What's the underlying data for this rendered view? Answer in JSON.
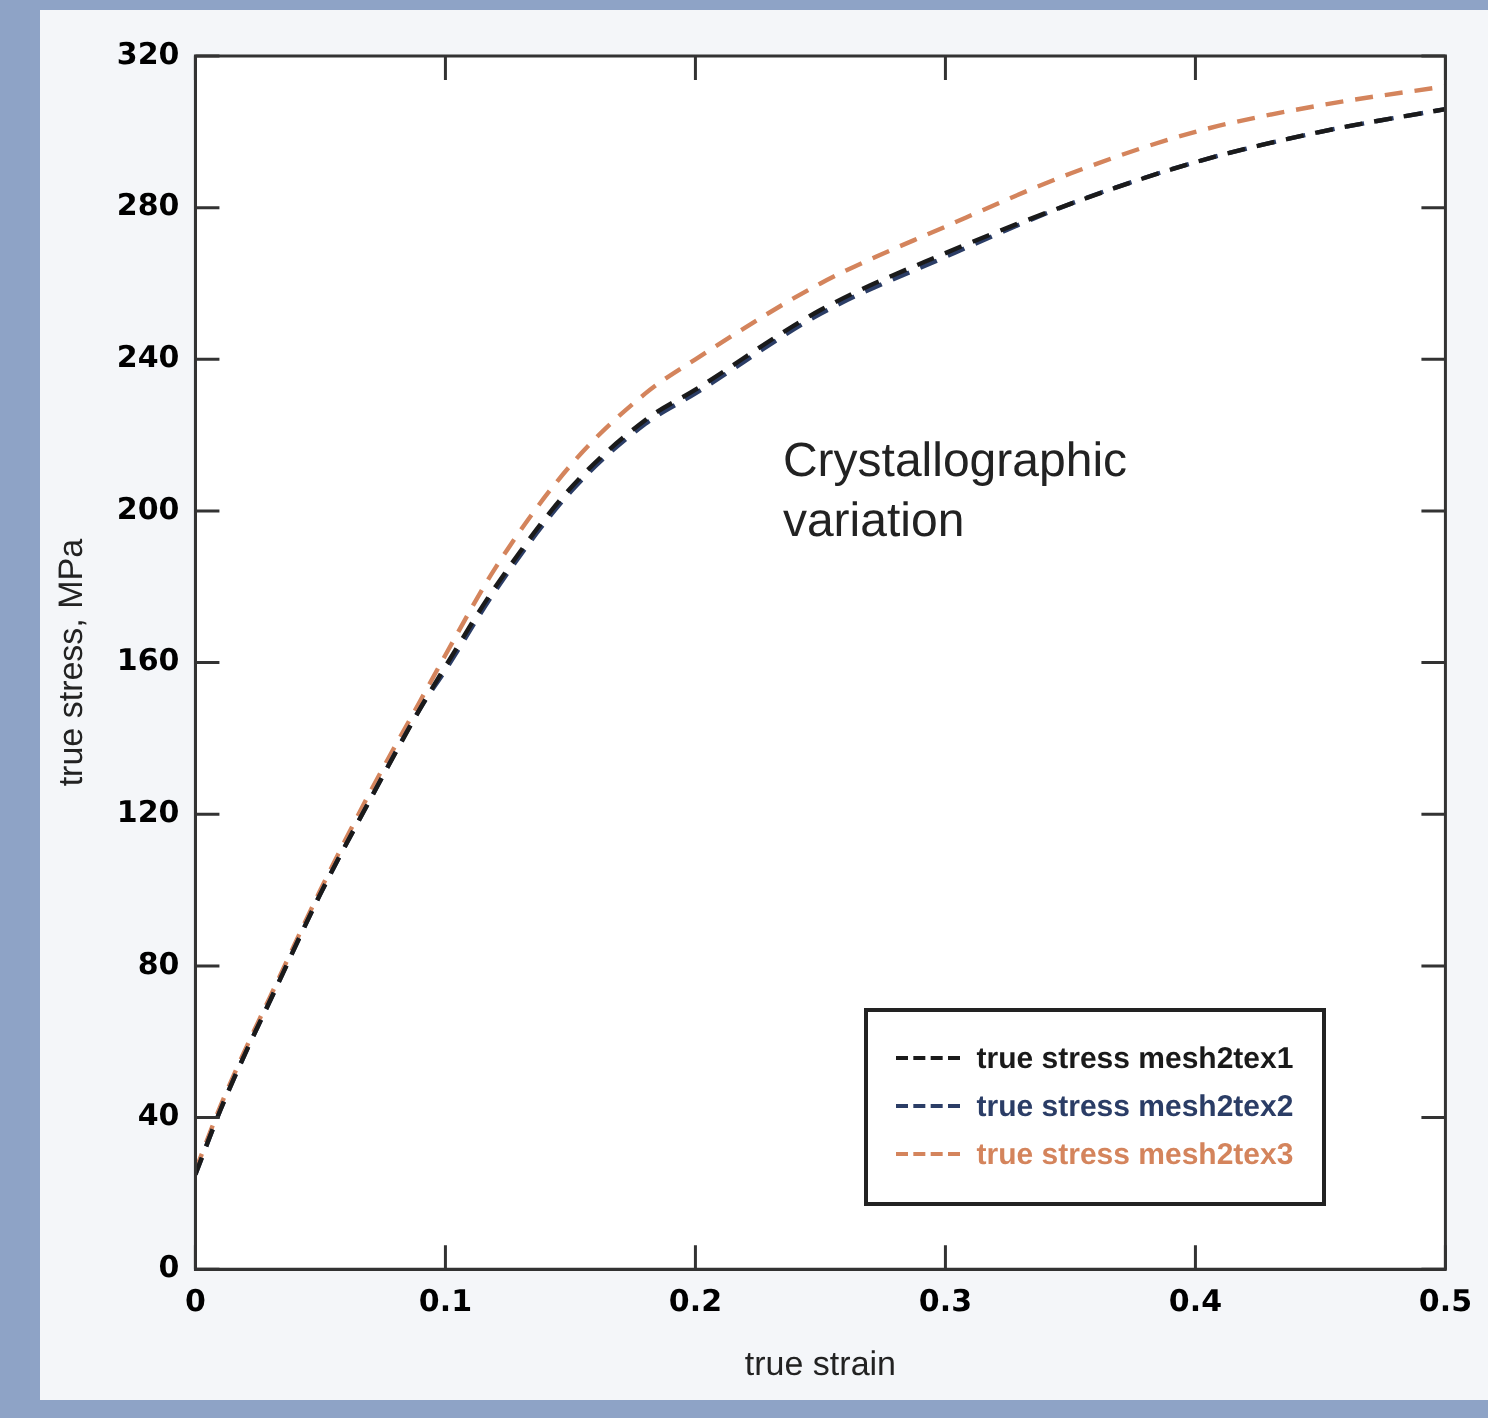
{
  "chart_data": {
    "type": "line",
    "xlabel": "true strain",
    "ylabel": "true stress, MPa",
    "xlim": [
      0,
      0.5
    ],
    "xticks": [
      0,
      0.1,
      0.2,
      0.3,
      0.4,
      0.5
    ],
    "ylim": [
      0,
      320
    ],
    "yticks": [
      0,
      40,
      80,
      120,
      160,
      200,
      240,
      280,
      320
    ],
    "grid": false,
    "legend": "bottom right",
    "marker": "none",
    "line_style": "dashed",
    "annotations": [
      "Crystallographic\nvariation"
    ],
    "series": [
      {
        "name": "true stress mesh2tex1",
        "color": "#1a1a1a",
        "x": [
          0,
          0.01,
          0.02,
          0.03,
          0.05,
          0.07,
          0.09,
          0.1,
          0.12,
          0.15,
          0.18,
          0.2,
          0.25,
          0.3,
          0.35,
          0.4,
          0.45,
          0.5
        ],
        "values": [
          25,
          42,
          57,
          71,
          99,
          124,
          148,
          159,
          180,
          206,
          224,
          232,
          253,
          268,
          281,
          292,
          300,
          306
        ]
      },
      {
        "name": "true stress mesh2tex2",
        "color": "#2b3d66",
        "x": [
          0,
          0.01,
          0.02,
          0.03,
          0.05,
          0.07,
          0.09,
          0.1,
          0.12,
          0.15,
          0.18,
          0.2,
          0.25,
          0.3,
          0.35,
          0.4,
          0.45,
          0.5
        ],
        "values": [
          25,
          42,
          57,
          71,
          99,
          124,
          148,
          158,
          179,
          205,
          223,
          231,
          252,
          267,
          281,
          292,
          300,
          306
        ]
      },
      {
        "name": "true stress mesh2tex3",
        "color": "#d4845c",
        "x": [
          0,
          0.01,
          0.02,
          0.03,
          0.05,
          0.07,
          0.09,
          0.1,
          0.12,
          0.15,
          0.18,
          0.2,
          0.25,
          0.3,
          0.35,
          0.4,
          0.45,
          0.5
        ],
        "values": [
          26,
          43,
          58,
          72,
          100,
          126,
          150,
          162,
          185,
          212,
          231,
          240,
          260,
          275,
          289,
          300,
          307,
          312
        ]
      }
    ]
  }
}
